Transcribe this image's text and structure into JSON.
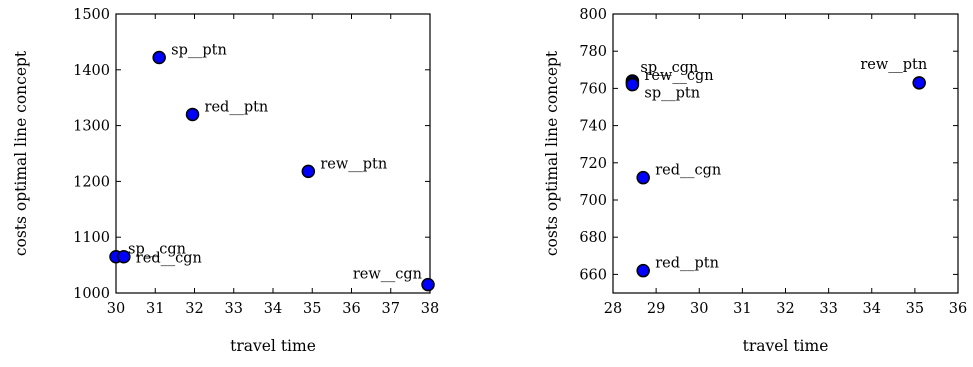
{
  "chart_data": [
    {
      "type": "scatter",
      "xlabel": "travel time",
      "ylabel": "costs optimal line concept",
      "xlim": [
        30,
        38
      ],
      "ylim": [
        1000,
        1500
      ],
      "xticks": [
        30,
        31,
        32,
        33,
        34,
        35,
        36,
        37,
        38
      ],
      "yticks": [
        1000,
        1100,
        1200,
        1300,
        1400,
        1500
      ],
      "marker_color": "#0000ff",
      "points": [
        {
          "label": "sp__ptn",
          "x": 31.1,
          "y": 1422,
          "label_pos": "right-above"
        },
        {
          "label": "red__ptn",
          "x": 31.95,
          "y": 1320,
          "label_pos": "right-above"
        },
        {
          "label": "rew__ptn",
          "x": 34.9,
          "y": 1218,
          "label_pos": "right-above"
        },
        {
          "label": "sp__cgn",
          "x": 30.0,
          "y": 1065,
          "label_pos": "right-above"
        },
        {
          "label": "red__cgn",
          "x": 30.2,
          "y": 1065,
          "label_pos": "right"
        },
        {
          "label": "rew__cgn",
          "x": 37.95,
          "y": 1015,
          "label_pos": "left-above"
        }
      ]
    },
    {
      "type": "scatter",
      "xlabel": "travel time",
      "ylabel": "costs optimal line concept",
      "xlim": [
        28,
        36
      ],
      "ylim": [
        650,
        800
      ],
      "xticks": [
        28,
        29,
        30,
        31,
        32,
        33,
        34,
        35,
        36
      ],
      "yticks": [
        660,
        680,
        700,
        720,
        740,
        760,
        780,
        800
      ],
      "marker_color": "#0000ff",
      "points": [
        {
          "label": "sp__cgn",
          "x": 28.45,
          "y": 764,
          "label_pos": "above-right"
        },
        {
          "label": "rew__cgn",
          "x": 28.45,
          "y": 763,
          "label_pos": "right-above"
        },
        {
          "label": "sp__ptn",
          "x": 28.45,
          "y": 762,
          "label_pos": "right-below"
        },
        {
          "label": "red__cgn",
          "x": 28.7,
          "y": 712,
          "label_pos": "right-above"
        },
        {
          "label": "red__ptn",
          "x": 28.7,
          "y": 662,
          "label_pos": "right-above"
        },
        {
          "label": "rew__ptn",
          "x": 35.1,
          "y": 763,
          "label_pos": "above-left"
        }
      ]
    }
  ]
}
